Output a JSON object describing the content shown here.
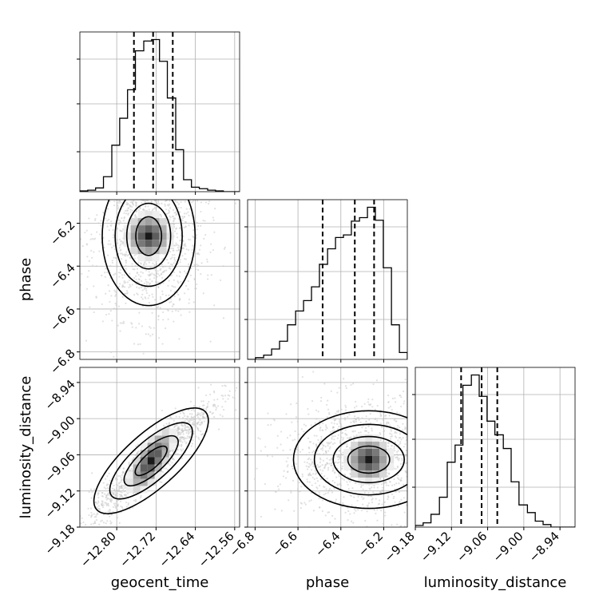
{
  "chart_data": {
    "type": "corner",
    "parameters": [
      "geocent_time",
      "phase",
      "luminosity_distance"
    ],
    "ranges": {
      "geocent_time": [
        -12.875,
        -12.55
      ],
      "phase": [
        -6.835,
        -6.09
      ],
      "luminosity_distance": [
        -9.18,
        -8.915
      ]
    },
    "ticks": {
      "geocent_time": [
        "-12.80",
        "-12.72",
        "-12.64",
        "-12.56"
      ],
      "phase": [
        "-6.8",
        "-6.6",
        "-6.4",
        "-6.2"
      ],
      "luminosity_distance": [
        "-9.18",
        "-9.12",
        "-9.06",
        "-9.00",
        "-8.94"
      ]
    },
    "tick_values": {
      "geocent_time": [
        -12.8,
        -12.72,
        -12.64,
        -12.56
      ],
      "phase": [
        -6.8,
        -6.6,
        -6.4,
        -6.2
      ],
      "luminosity_distance": [
        -9.18,
        -9.12,
        -9.06,
        -9.0,
        -8.94
      ]
    },
    "quantiles": {
      "geocent_time": [
        -12.765,
        -12.726,
        -12.686
      ],
      "phase": [
        -6.485,
        -6.335,
        -6.245
      ],
      "luminosity_distance": [
        -9.104,
        -9.07,
        -9.044
      ]
    },
    "histograms": {
      "geocent_time": {
        "edges": [
          -12.875,
          -12.859,
          -12.843,
          -12.827,
          -12.81,
          -12.794,
          -12.778,
          -12.762,
          -12.745,
          -12.729,
          -12.713,
          -12.697,
          -12.68,
          -12.664,
          -12.648,
          -12.632,
          -12.615,
          -12.599,
          -12.583,
          -12.567,
          -12.55
        ],
        "counts": [
          1,
          2,
          5,
          20,
          62,
          98,
          136,
          188,
          201,
          203,
          174,
          125,
          56,
          16,
          6,
          4,
          2,
          1,
          0,
          0
        ]
      },
      "phase": {
        "edges": [
          -6.835,
          -6.798,
          -6.76,
          -6.723,
          -6.686,
          -6.649,
          -6.611,
          -6.574,
          -6.537,
          -6.5,
          -6.462,
          -6.425,
          -6.388,
          -6.351,
          -6.313,
          -6.276,
          -6.239,
          -6.202,
          -6.164,
          -6.127,
          -6.09
        ],
        "counts": [
          0,
          2,
          5,
          12,
          21,
          40,
          56,
          68,
          84,
          110,
          128,
          141,
          144,
          160,
          164,
          176,
          161,
          106,
          40,
          8
        ]
      },
      "luminosity_distance": {
        "edges": [
          -9.18,
          -9.167,
          -9.154,
          -9.14,
          -9.127,
          -9.114,
          -9.101,
          -9.087,
          -9.074,
          -9.061,
          -9.048,
          -9.034,
          -9.021,
          -9.008,
          -8.994,
          -8.981,
          -8.968,
          -8.955,
          -8.941,
          -8.928,
          -8.915
        ],
        "counts": [
          2,
          5,
          15,
          35,
          76,
          96,
          166,
          178,
          153,
          124,
          108,
          92,
          53,
          26,
          17,
          7,
          3,
          0,
          0,
          0
        ]
      }
    },
    "scatter_pairs": [
      {
        "x": "geocent_time",
        "y": "phase",
        "correlation": 0.0,
        "mode": [
          -12.735,
          -6.26
        ],
        "sigma": [
          0.035,
          0.12
        ]
      },
      {
        "x": "geocent_time",
        "y": "luminosity_distance",
        "correlation": 0.92,
        "mode": [
          -12.73,
          -9.07
        ],
        "sigma": [
          0.038,
          0.03
        ]
      },
      {
        "x": "phase",
        "y": "luminosity_distance",
        "correlation": 0.0,
        "mode": [
          -6.27,
          -9.068
        ],
        "sigma": [
          0.13,
          0.03
        ]
      }
    ],
    "grid": true,
    "quantile_line_style": "dashed",
    "colors": {
      "line": "#000000",
      "scatter": "#c8c8c8",
      "grid": "#b0b0b0"
    }
  }
}
